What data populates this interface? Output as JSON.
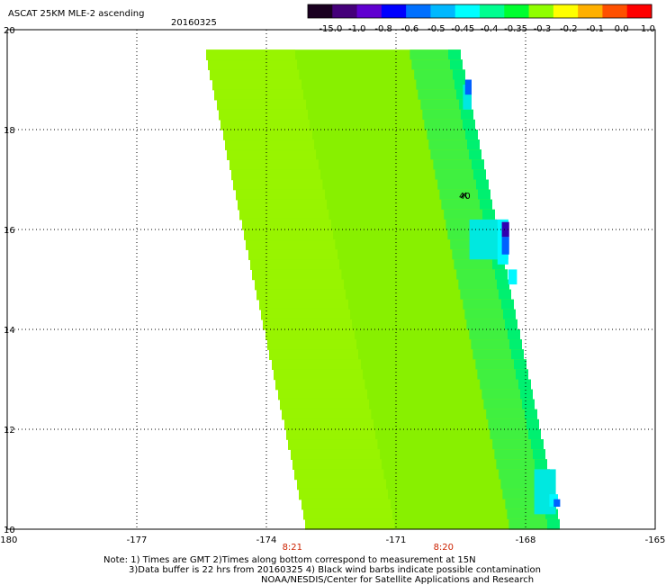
{
  "title": "ASCAT 25KM MLE-2 ascending",
  "date": "20160325",
  "colorbar": {
    "labels": [
      "-15.0",
      "-1.0",
      "-0.8",
      "-0.6",
      "-0.5",
      "-0.45",
      "-0.4",
      "-0.35",
      "-0.3",
      "-0.2",
      "-0.1",
      "0.0",
      "1.0"
    ],
    "colors": [
      "#1a0020",
      "#45007a",
      "#6000d0",
      "#0000ff",
      "#0070ff",
      "#00b8ff",
      "#00ffff",
      "#00ff90",
      "#00ff30",
      "#90ff00",
      "#ffff00",
      "#ffb000",
      "#ff5000",
      "#ff0000"
    ]
  },
  "map": {
    "lon_labels": [
      "-180",
      "-177",
      "-174",
      "-171",
      "-168",
      "-165"
    ],
    "lat_labels": [
      "20",
      "18",
      "16",
      "14",
      "12",
      "10"
    ],
    "lon_range": [
      -180,
      -165
    ],
    "lat_range": [
      10,
      20
    ],
    "time_labels": [
      {
        "lon": -173.4,
        "text": "8:21"
      },
      {
        "lon": -169.9,
        "text": "8:20"
      }
    ],
    "swath": {
      "lat_top": 19.6,
      "lat_bottom": 10.0,
      "west_lon_top": -175.4,
      "west_lon_bottom": -173.1,
      "east_lon_top": -169.5,
      "east_lon_bottom": -167.2
    },
    "fill_colors": {
      "base": "#88f000",
      "high": "#98f400",
      "green": "#40f040",
      "bright_green": "#00f070",
      "cyan": "#00e8e0",
      "light_cyan": "#00f8ff",
      "blue": "#0060ff",
      "dark": "#3000b0"
    },
    "barb_label": "40"
  },
  "notes": {
    "line1": "Note: 1) Times are GMT 2)Times along bottom correspond to measurement at 15N",
    "line2": "3)Data buffer is 22 hrs from 20160325 4) Black wind barbs indicate possible contamination",
    "line3": "NOAA/NESDIS/Center for Satellite Applications and Research"
  }
}
